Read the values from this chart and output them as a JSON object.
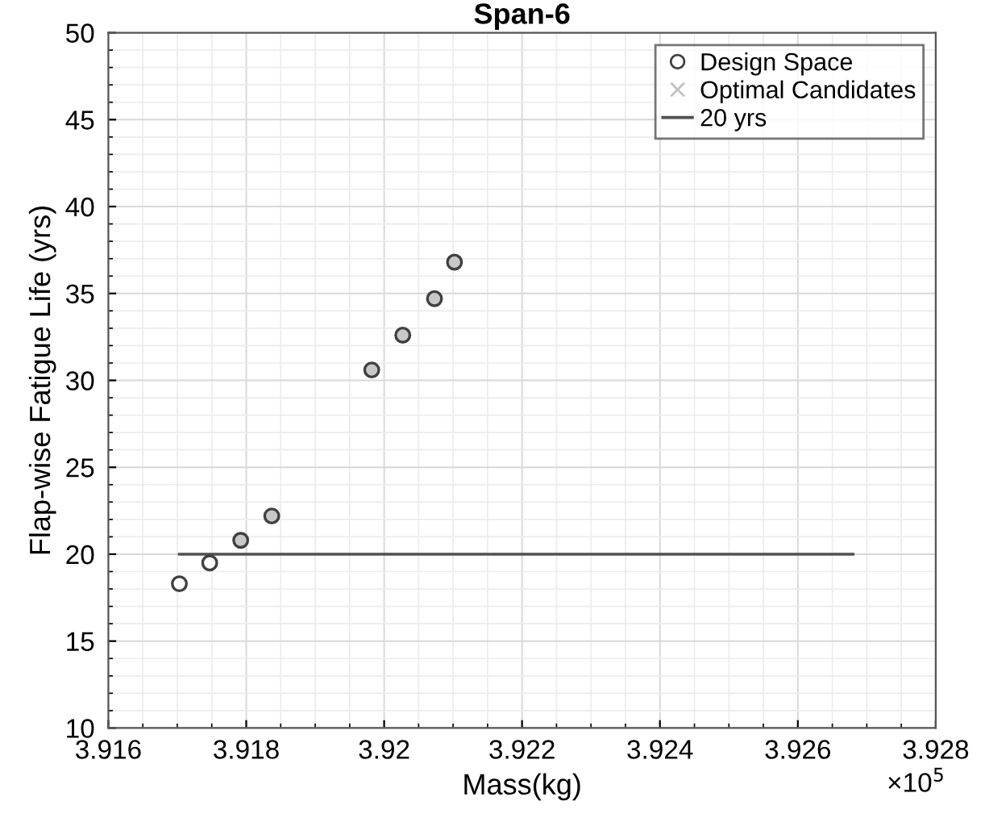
{
  "chart_data": {
    "type": "scatter",
    "title": "Span-6",
    "xlabel": "Mass(kg)",
    "ylabel": "Flap-wise Fatigue Life (yrs)",
    "series": [
      {
        "name": "Design Space",
        "marker": "circle",
        "color": "#404040",
        "colors": [
          "#ffffff",
          "#ffffff",
          "#c8c8c8",
          "#c8c8c8",
          "#c8c8c8",
          "#c8c8c8",
          "#c8c8c8",
          "#c8c8c8"
        ],
        "x": [
          3.91703,
          3.91747,
          3.91792,
          3.91837,
          3.91982,
          3.92027,
          3.92073,
          3.92102
        ],
        "values": [
          18.3,
          19.5,
          20.8,
          22.2,
          30.6,
          32.6,
          34.7,
          36.8
        ]
      },
      {
        "name": "Optimal Candidates",
        "marker": "cross",
        "color": "#c0c0c0"
      },
      {
        "name": "20 yrs",
        "type": "line",
        "marker": "none",
        "color": "#505050",
        "x": [
          3.91703,
          3.9268
        ],
        "values": [
          20,
          20
        ]
      }
    ],
    "xlim": [
      3.916,
      3.928
    ],
    "xticks": [
      3.916,
      3.918,
      3.92,
      3.922,
      3.924,
      3.926,
      3.928
    ],
    "ylim": [
      10,
      50
    ],
    "yticks": [
      10,
      15,
      20,
      25,
      30,
      35,
      40,
      45,
      50
    ],
    "annotations": [
      "×10$^{5}$"
    ],
    "grid": true,
    "legend": "top right"
  }
}
